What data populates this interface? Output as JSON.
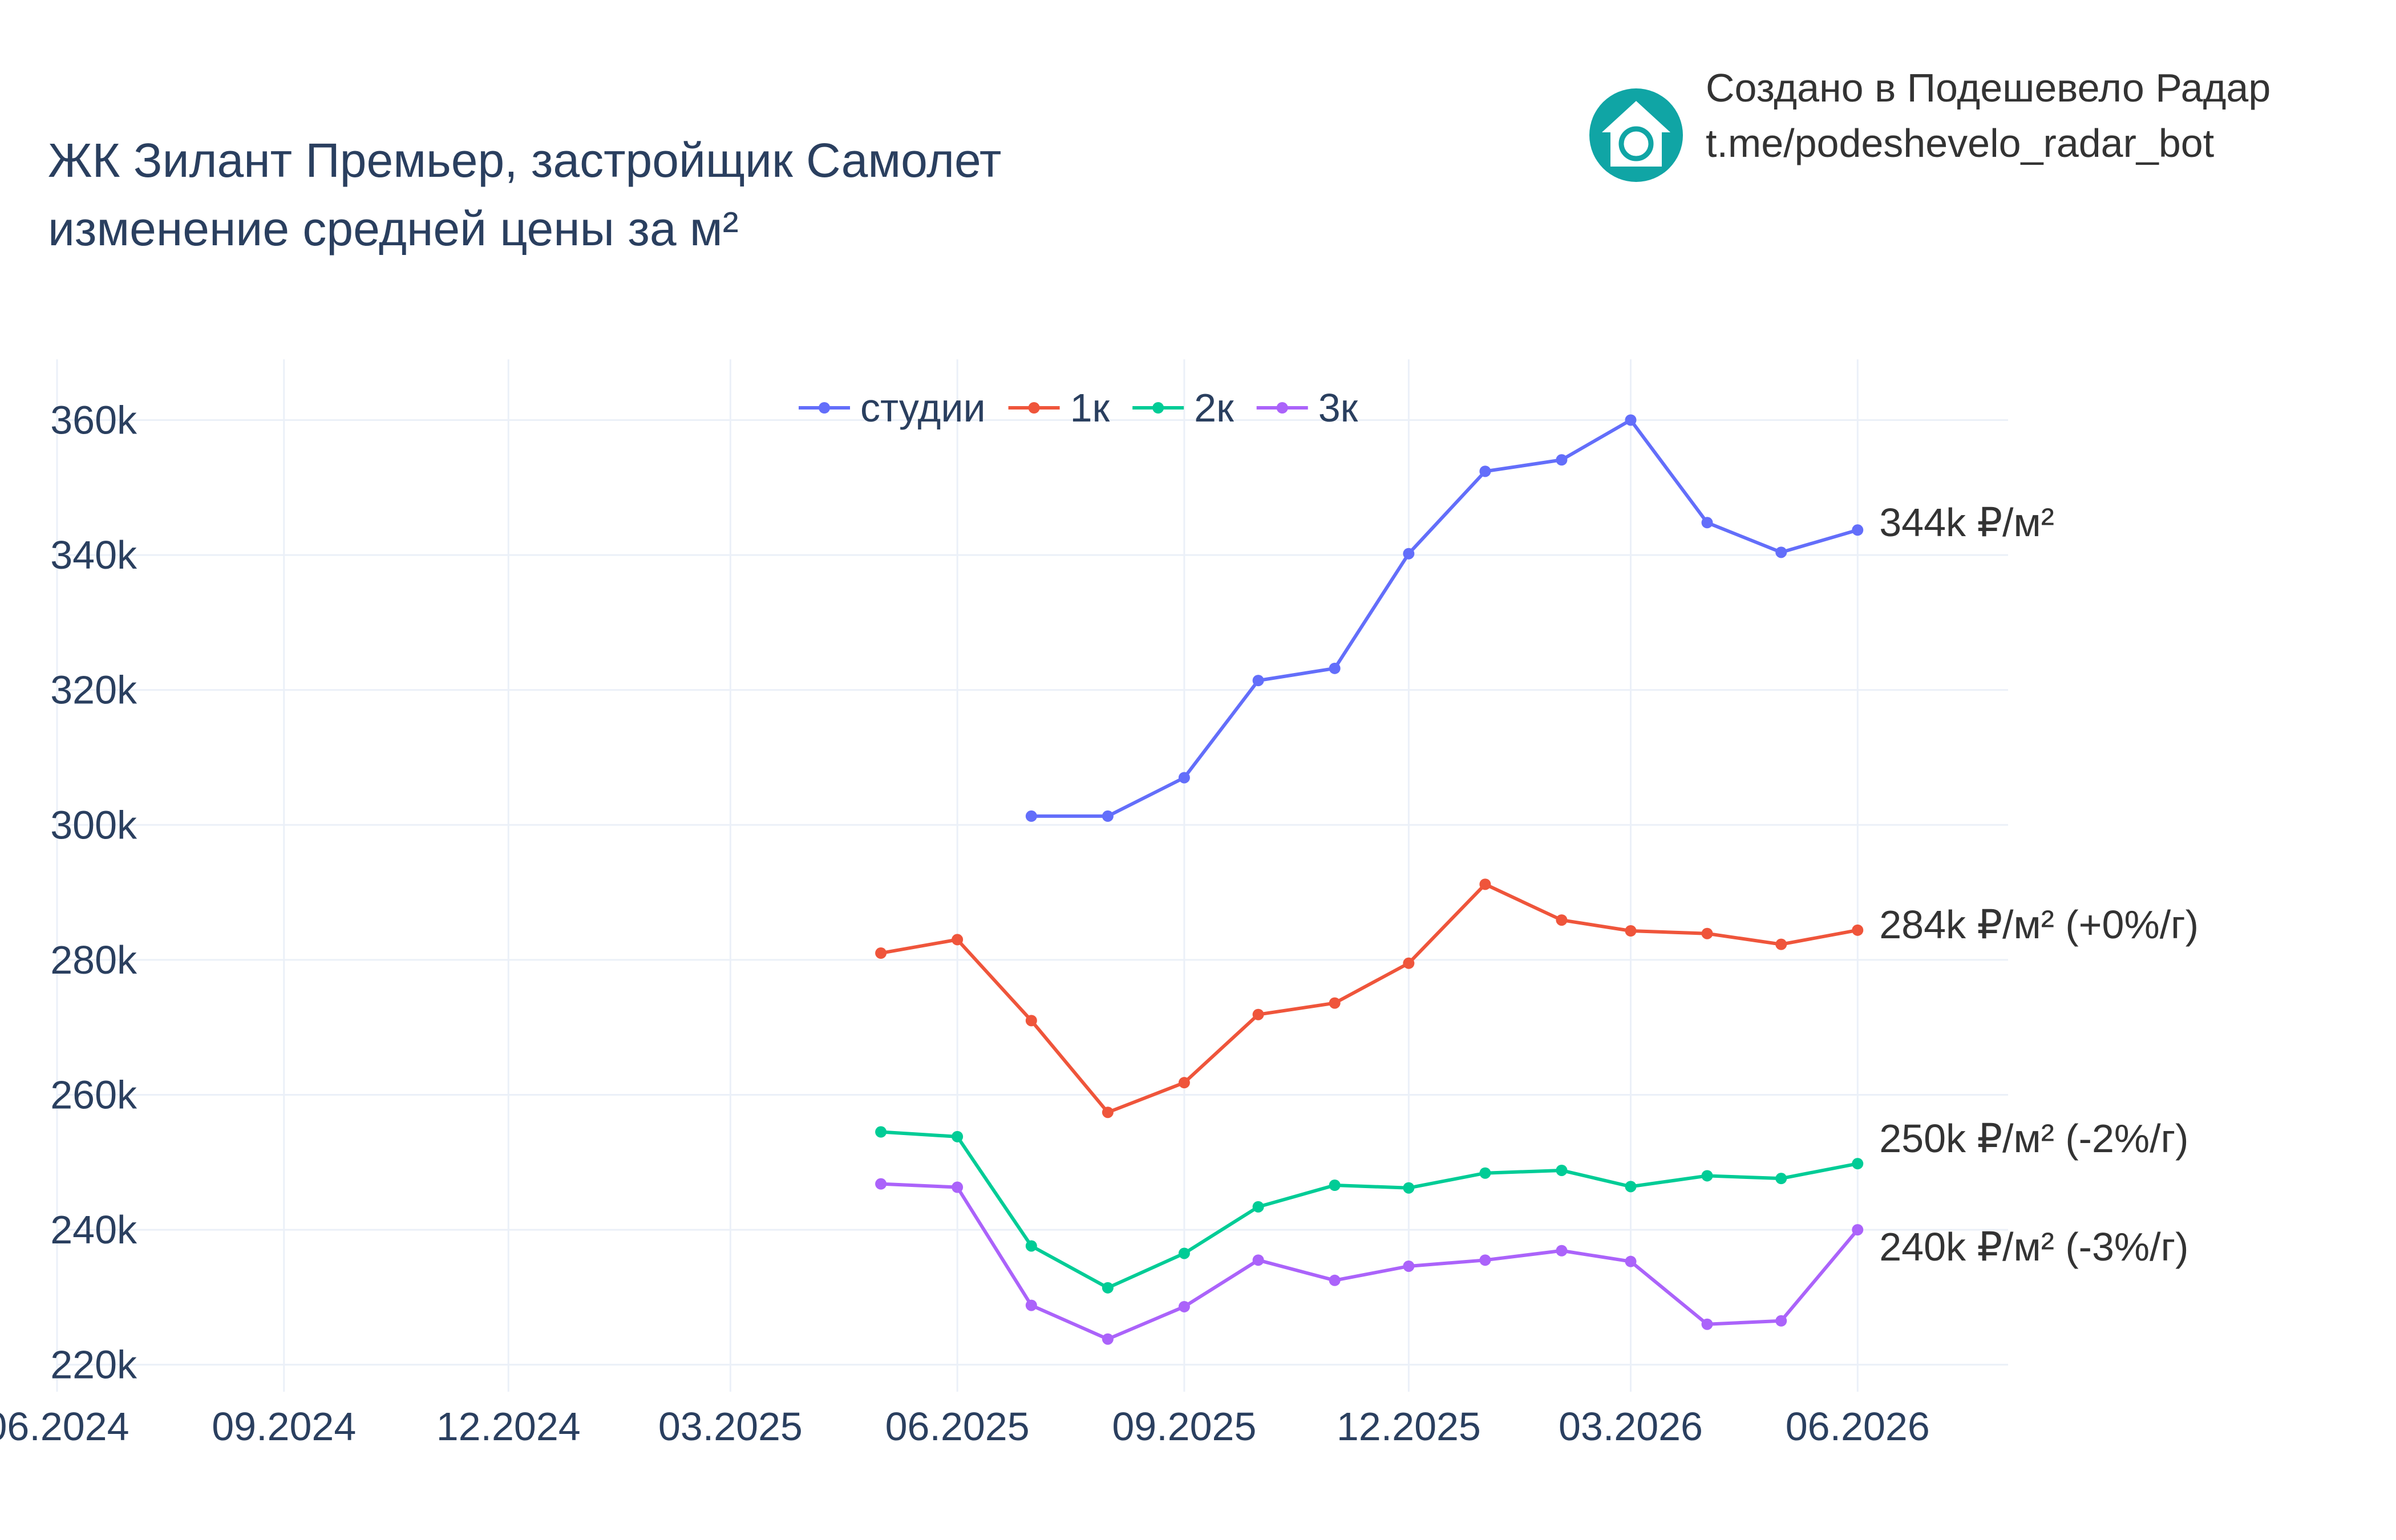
{
  "chart_data": {
    "type": "line",
    "title_lines": [
      "ЖК Зилант Премьер, застройщик Самолет",
      "изменение средней цены за м²"
    ],
    "xlabel": "",
    "ylabel": "",
    "x": [
      "2025-05-01",
      "2025-06-01",
      "2025-07-01",
      "2025-08-01",
      "2025-09-01",
      "2025-10-01",
      "2025-11-01",
      "2025-12-01",
      "2026-01-01",
      "2026-02-01",
      "2026-03-01",
      "2026-04-01",
      "2026-05-01",
      "2026-06-01"
    ],
    "x_ticks": [
      {
        "date": "2024-06-01",
        "label": "06.2024"
      },
      {
        "date": "2024-09-01",
        "label": "09.2024"
      },
      {
        "date": "2024-12-01",
        "label": "12.2024"
      },
      {
        "date": "2025-03-01",
        "label": "03.2025"
      },
      {
        "date": "2025-06-01",
        "label": "06.2025"
      },
      {
        "date": "2025-09-01",
        "label": "09.2025"
      },
      {
        "date": "2025-12-01",
        "label": "12.2025"
      },
      {
        "date": "2026-03-01",
        "label": "03.2026"
      },
      {
        "date": "2026-06-01",
        "label": "06.2026"
      }
    ],
    "xlim": [
      "2024-06-01",
      "2026-08-01"
    ],
    "y_ticks": [
      {
        "value": 220000,
        "label": "220k"
      },
      {
        "value": 240000,
        "label": "240k"
      },
      {
        "value": 260000,
        "label": "260k"
      },
      {
        "value": 280000,
        "label": "280k"
      },
      {
        "value": 300000,
        "label": "300k"
      },
      {
        "value": 320000,
        "label": "320k"
      },
      {
        "value": 340000,
        "label": "340k"
      },
      {
        "value": 360000,
        "label": "360k"
      }
    ],
    "ylim": [
      216000,
      369000
    ],
    "grid": true,
    "legend_position": "top-center",
    "series": [
      {
        "name": "студии",
        "color": "#636efa",
        "values": [
          null,
          null,
          301300,
          301300,
          307000,
          321400,
          323200,
          340200,
          352400,
          354100,
          360000,
          344800,
          340400,
          343700
        ],
        "end_label": "344k ₽/м²"
      },
      {
        "name": "1к",
        "color": "#ef553b",
        "values": [
          281000,
          283000,
          271000,
          257400,
          261800,
          271900,
          273600,
          279500,
          291200,
          285900,
          284300,
          283900,
          282300,
          284400
        ],
        "end_label": "284k ₽/м² (+0%/г)"
      },
      {
        "name": "2к",
        "color": "#00cc96",
        "values": [
          254500,
          253800,
          237600,
          231400,
          236500,
          243400,
          246600,
          246200,
          248400,
          248800,
          246400,
          248000,
          247600,
          249800
        ],
        "end_label": "250k ₽/м² (-2%/г)"
      },
      {
        "name": "3к",
        "color": "#ab63fa",
        "values": [
          246800,
          246300,
          228800,
          223800,
          228600,
          235500,
          232500,
          234600,
          235500,
          236900,
          235300,
          226000,
          226500,
          240000
        ],
        "end_label": "240k ₽/м² (-3%/г)"
      }
    ]
  },
  "brand": {
    "line1": "Создано в Подешевело Радар",
    "line2": "t.me/podeshevelo_radar_bot",
    "logo_icon": "house-refresh-icon",
    "logo_color": "#10a5a5"
  }
}
